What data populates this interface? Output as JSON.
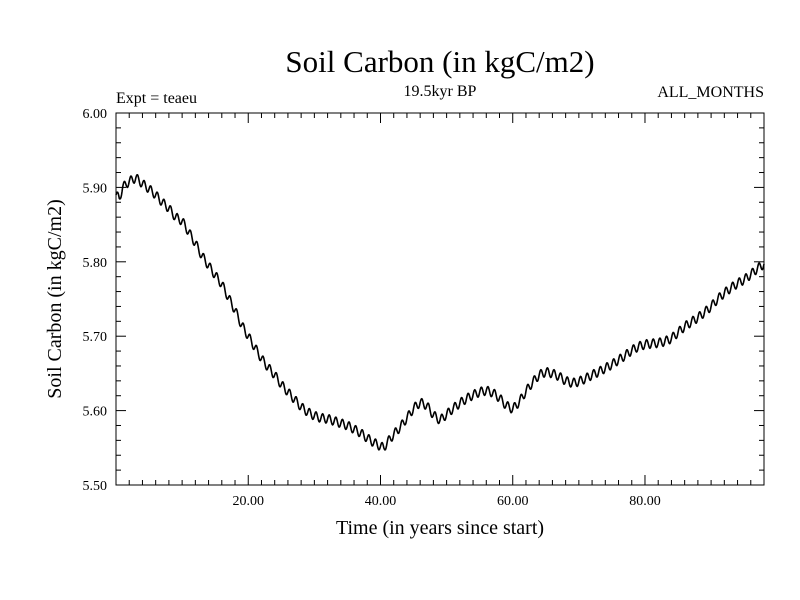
{
  "chart_data": {
    "type": "line",
    "title": "Soil Carbon (in kgC/m2)",
    "subtitle": "19.5kyr BP",
    "left_label": "Expt = teaeu",
    "right_label": "ALL_MONTHS",
    "xlabel": "Time (in years since start)",
    "ylabel": "Soil Carbon (in kgC/m2)",
    "xlim": [
      0,
      98
    ],
    "ylim": [
      5.5,
      6.0
    ],
    "x_ticks": [
      20,
      40,
      60,
      80
    ],
    "x_tick_labels": [
      "20.00",
      "40.00",
      "60.00",
      "80.00"
    ],
    "y_ticks": [
      5.5,
      5.6,
      5.7,
      5.8,
      5.9,
      6.0
    ],
    "y_tick_labels": [
      "5.50",
      "5.60",
      "5.70",
      "5.80",
      "5.90",
      "6.00"
    ],
    "seasonal_amplitude": 0.006,
    "series": [
      {
        "name": "Soil Carbon",
        "x": [
          0,
          0.5,
          1,
          2,
          3,
          4,
          5,
          6,
          7,
          8,
          9,
          10,
          11,
          12,
          13,
          14,
          15,
          16,
          17,
          18,
          19,
          20,
          21,
          22,
          23,
          24,
          25,
          26,
          27,
          28,
          29,
          30,
          31,
          32,
          33,
          34,
          35,
          36,
          37,
          38,
          39,
          40,
          40.5,
          41,
          42,
          43,
          44,
          45,
          46,
          47,
          48,
          49,
          50,
          51,
          52,
          53,
          54,
          55,
          56,
          57,
          58,
          59,
          60,
          61,
          62,
          63,
          64,
          65,
          66,
          67,
          68,
          69,
          70,
          71,
          72,
          73,
          74,
          75,
          76,
          77,
          78,
          79,
          80,
          81,
          82,
          83,
          84,
          85,
          86,
          87,
          88,
          89,
          90,
          91,
          92,
          93,
          94,
          95,
          96,
          97,
          98
        ],
        "y": [
          5.89,
          5.885,
          5.9,
          5.908,
          5.913,
          5.905,
          5.898,
          5.89,
          5.88,
          5.872,
          5.86,
          5.855,
          5.84,
          5.825,
          5.808,
          5.795,
          5.782,
          5.77,
          5.752,
          5.735,
          5.715,
          5.7,
          5.685,
          5.67,
          5.658,
          5.648,
          5.635,
          5.625,
          5.615,
          5.605,
          5.598,
          5.593,
          5.59,
          5.589,
          5.586,
          5.583,
          5.58,
          5.575,
          5.57,
          5.563,
          5.557,
          5.552,
          5.55,
          5.557,
          5.568,
          5.578,
          5.59,
          5.603,
          5.611,
          5.607,
          5.594,
          5.587,
          5.595,
          5.603,
          5.61,
          5.616,
          5.621,
          5.625,
          5.627,
          5.624,
          5.617,
          5.607,
          5.602,
          5.612,
          5.626,
          5.638,
          5.648,
          5.652,
          5.65,
          5.646,
          5.64,
          5.637,
          5.639,
          5.643,
          5.648,
          5.652,
          5.657,
          5.662,
          5.668,
          5.674,
          5.681,
          5.686,
          5.689,
          5.69,
          5.691,
          5.693,
          5.697,
          5.705,
          5.713,
          5.719,
          5.725,
          5.732,
          5.74,
          5.75,
          5.758,
          5.765,
          5.771,
          5.776,
          5.783,
          5.791,
          5.797
        ]
      }
    ]
  }
}
